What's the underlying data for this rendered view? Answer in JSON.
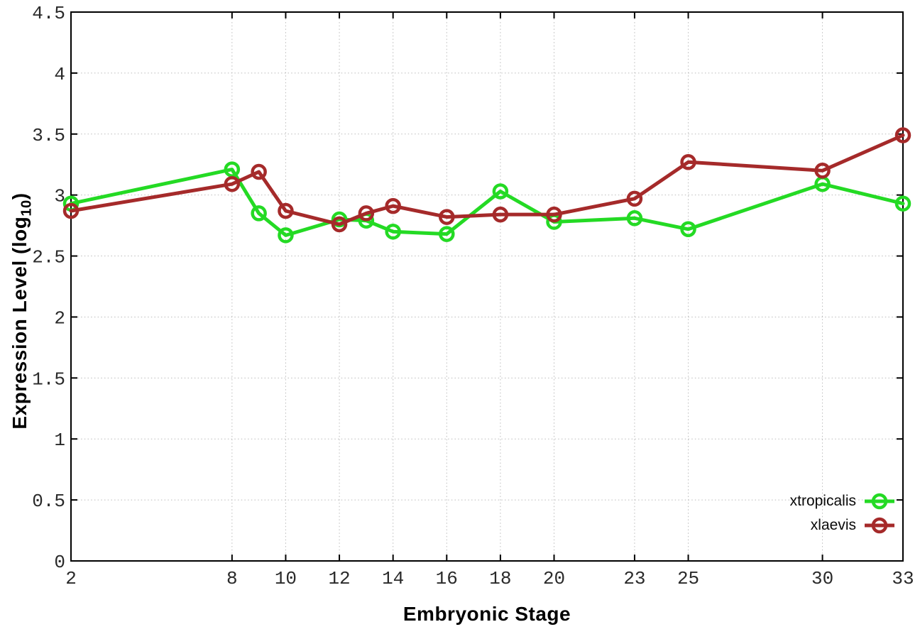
{
  "page": {
    "background": "#ffffff"
  },
  "chart_data": {
    "type": "line",
    "title": "",
    "xlabel": "Embryonic Stage",
    "ylabel": "Expression Level (log10)",
    "ylabel_prefix": "Expression Level (log",
    "ylabel_sub": "10",
    "ylabel_suffix": ")",
    "xlim": [
      2,
      33
    ],
    "ylim": [
      0,
      4.5
    ],
    "x": [
      2,
      8,
      9,
      10,
      12,
      13,
      14,
      16,
      18,
      20,
      23,
      25,
      30,
      33
    ],
    "xtick_values": [
      2,
      8,
      10,
      12,
      14,
      16,
      18,
      20,
      23,
      25,
      30,
      33
    ],
    "xtick_labels": [
      "2",
      "8",
      "10",
      "12",
      "14",
      "16",
      "18",
      "20",
      "23",
      "25",
      "30",
      "33"
    ],
    "ytick_values": [
      0,
      0.5,
      1,
      1.5,
      2,
      2.5,
      3,
      3.5,
      4,
      4.5
    ],
    "ytick_labels": [
      "0",
      "0.5",
      "1",
      "1.5",
      "2",
      "2.5",
      "3",
      "3.5",
      "4",
      "4.5"
    ],
    "grid": true,
    "legend_position": "bottom-right-inside",
    "marker": "open-circle",
    "series": [
      {
        "name": "xtropicalis",
        "color": "#24da24",
        "values": [
          2.93,
          3.21,
          2.85,
          2.67,
          2.8,
          2.79,
          2.7,
          2.68,
          3.03,
          2.78,
          2.81,
          2.72,
          3.09,
          2.93
        ]
      },
      {
        "name": "xlaevis",
        "color": "#a52a2a",
        "values": [
          2.87,
          3.09,
          3.19,
          2.87,
          2.76,
          2.85,
          2.91,
          2.82,
          2.84,
          2.84,
          2.97,
          3.27,
          3.2,
          3.49
        ]
      }
    ]
  },
  "style_colors": {
    "grid": "#bbbbbb",
    "border": "#000000",
    "tick_label": "#2a2a2a"
  }
}
